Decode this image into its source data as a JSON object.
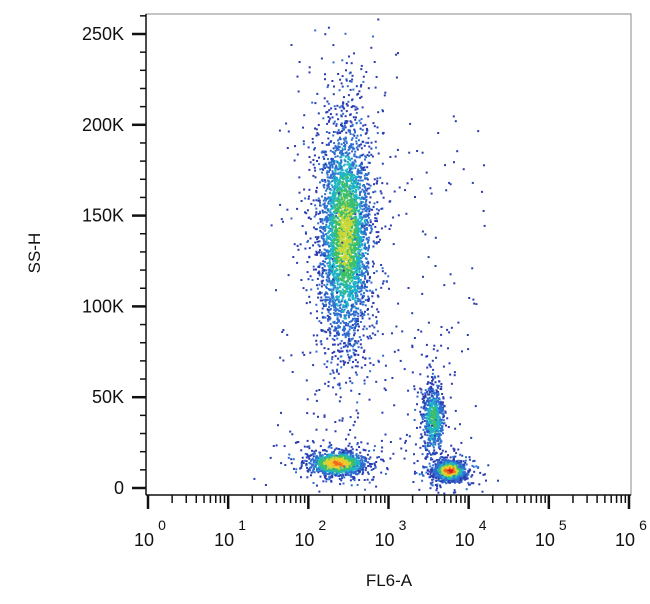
{
  "chart_data": {
    "type": "scatter",
    "title": "",
    "xlabel": "FL6-A",
    "ylabel": "SS-H",
    "x_scale": "log",
    "xlim": [
      1,
      1000000
    ],
    "ylim": [
      0,
      262144
    ],
    "grid": false,
    "y_ticks": [
      {
        "value": 0,
        "label": "0"
      },
      {
        "value": 50000,
        "label": "50K"
      },
      {
        "value": 100000,
        "label": "100K"
      },
      {
        "value": 150000,
        "label": "150K"
      },
      {
        "value": 200000,
        "label": "200K"
      },
      {
        "value": 250000,
        "label": "250K"
      }
    ],
    "x_ticks": [
      {
        "value": 1,
        "base": "10",
        "exp": "0"
      },
      {
        "value": 10,
        "base": "10",
        "exp": "1"
      },
      {
        "value": 100,
        "base": "10",
        "exp": "2"
      },
      {
        "value": 1000,
        "base": "10",
        "exp": "3"
      },
      {
        "value": 10000,
        "base": "10",
        "exp": "4"
      },
      {
        "value": 100000,
        "base": "10",
        "exp": "5"
      },
      {
        "value": 1000000,
        "base": "10",
        "exp": "6"
      }
    ],
    "density_colors": [
      "#2b3bb0",
      "#2f6fd0",
      "#1fb5c8",
      "#3cbf6a",
      "#c8d838",
      "#f7c92a",
      "#f06a1e",
      "#e01818"
    ],
    "populations": [
      {
        "log10_x_center": 2.45,
        "y_center": 140000,
        "log10_x_sd": 0.16,
        "y_sd": 30000,
        "count": 3600,
        "peak_color": "#c8d838"
      },
      {
        "log10_x_center": 2.35,
        "y_center": 14000,
        "log10_x_sd": 0.17,
        "y_sd": 3200,
        "count": 1300,
        "peak_color": "#f06a1e"
      },
      {
        "log10_x_center": 3.55,
        "y_center": 38000,
        "log10_x_sd": 0.07,
        "y_sd": 9500,
        "count": 700,
        "peak_color": "#3cbf6a"
      },
      {
        "log10_x_center": 3.75,
        "y_center": 10000,
        "log10_x_sd": 0.09,
        "y_sd": 2600,
        "count": 1400,
        "peak_color": "#e01818"
      }
    ]
  }
}
